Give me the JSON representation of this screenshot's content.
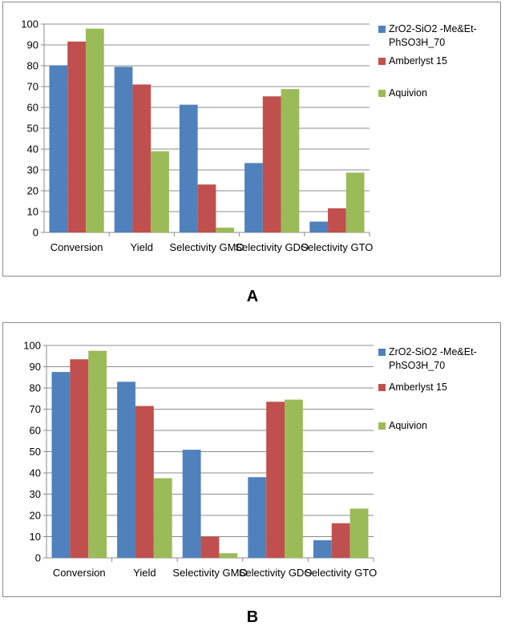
{
  "chart_data": [
    {
      "type": "bar",
      "panel_label": "A",
      "categories": [
        "Conversion",
        "Yield",
        "Selectivity GMO",
        "Selectivity GDO",
        "Selectivity GTO"
      ],
      "series": [
        {
          "name": "ZrO2-SiO2 -Me&Et-PhSO3H_70",
          "legend_lines": [
            "ZrO2-SiO2 -Me&Et-",
            "PhSO3H_70"
          ],
          "color": "#4F81BD",
          "values": [
            80.2,
            79.5,
            61.3,
            33.3,
            5.2
          ]
        },
        {
          "name": "Amberlyst 15",
          "legend_lines": [
            "Amberlyst 15"
          ],
          "color": "#C0504D",
          "values": [
            91.6,
            71.0,
            23.0,
            65.3,
            11.6
          ]
        },
        {
          "name": "Aquivion",
          "legend_lines": [
            "Aquivion"
          ],
          "color": "#9BBB59",
          "values": [
            97.8,
            39.0,
            2.3,
            68.8,
            28.7
          ]
        }
      ],
      "title": "",
      "xlabel": "",
      "ylabel": "",
      "ylim": [
        0,
        100
      ],
      "yticks": [
        "0",
        "10",
        "20",
        "30",
        "40",
        "50",
        "60",
        "70",
        "80",
        "90",
        "100"
      ],
      "grid": true,
      "legend_position": "right"
    },
    {
      "type": "bar",
      "panel_label": "B",
      "categories": [
        "Conversion",
        "Yield",
        "Selectivity GMO",
        "Selectivity GDO",
        "Selectivity GTO"
      ],
      "series": [
        {
          "name": "ZrO2-SiO2 -Me&Et-PhSO3H_70",
          "legend_lines": [
            "ZrO2-SiO2 -Me&Et-",
            "PhSO3H_70"
          ],
          "color": "#4F81BD",
          "values": [
            87.5,
            82.9,
            50.9,
            38.0,
            8.3
          ]
        },
        {
          "name": "Amberlyst 15",
          "legend_lines": [
            "Amberlyst 15"
          ],
          "color": "#C0504D",
          "values": [
            93.5,
            71.5,
            10.0,
            73.5,
            16.3
          ]
        },
        {
          "name": "Aquivion",
          "legend_lines": [
            "Aquivion"
          ],
          "color": "#9BBB59",
          "values": [
            97.5,
            37.5,
            2.2,
            74.5,
            23.2
          ]
        }
      ],
      "title": "",
      "xlabel": "",
      "ylabel": "",
      "ylim": [
        0,
        100
      ],
      "yticks": [
        "0",
        "10",
        "20",
        "30",
        "40",
        "50",
        "60",
        "70",
        "80",
        "90",
        "100"
      ],
      "grid": true,
      "legend_position": "right"
    }
  ]
}
